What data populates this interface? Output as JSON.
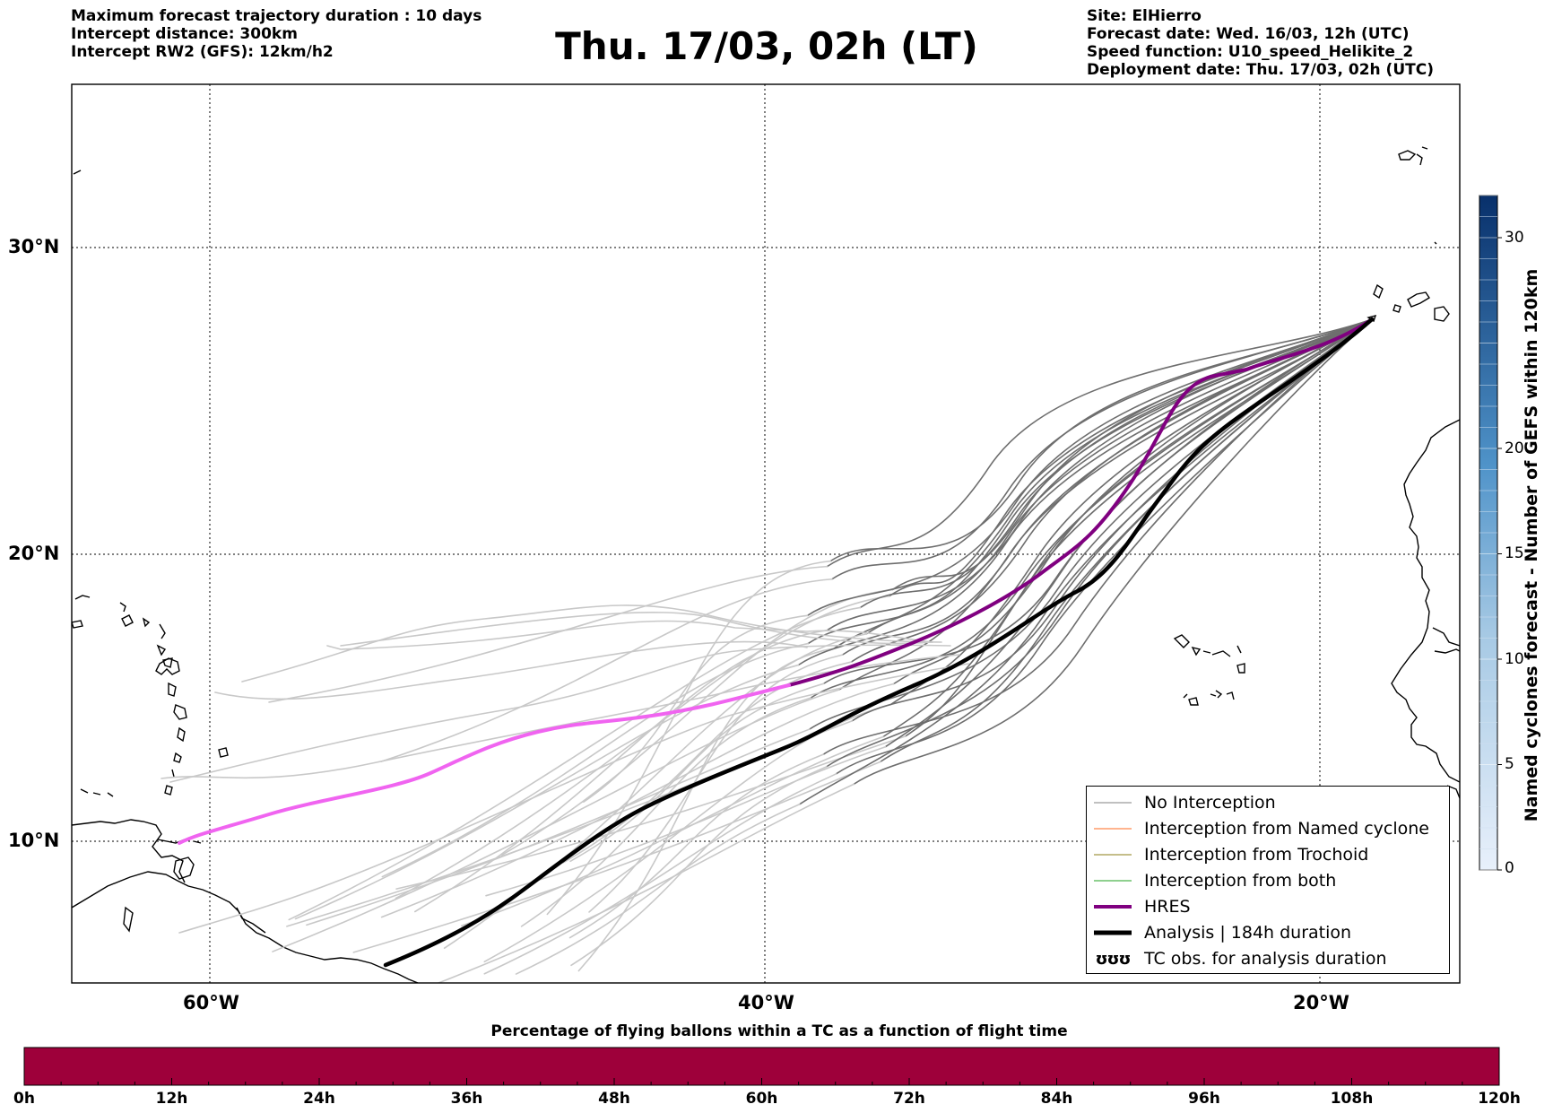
{
  "header_left": {
    "line1": "Maximum forecast trajectory duration : 10 days",
    "line2": "Intercept distance: 300km",
    "line3": "Intercept RW2 (GFS):  12km/h2"
  },
  "title": "Thu. 17/03, 02h (LT)",
  "header_right": {
    "line1": "Site: ElHierro",
    "line2": "Forecast date: Wed. 16/03, 12h (UTC)",
    "line3": "Speed function: U10_speed_Helikite_2",
    "line4": "Deployment date: Thu. 17/03, 02h (UTC)"
  },
  "map": {
    "projection": "mercator",
    "lon_range": [
      -65,
      -15
    ],
    "lat_range": [
      5,
      33
    ],
    "grid": "dotted",
    "lon_labels": [
      "60°W",
      "40°W",
      "20°W"
    ],
    "lat_labels": [
      "30°N",
      "20°N",
      "10°N"
    ],
    "colors": {
      "no_interception": "#808080",
      "named_cyclone": "#ff6a1f",
      "trochoid": "#8b7c14",
      "both": "#1fa01f",
      "hres": "#800080",
      "hres_far": "#f064f0",
      "analysis": "#000000"
    }
  },
  "legend": {
    "items": [
      {
        "label": "No Interception",
        "kind": "gray"
      },
      {
        "label": "Interception from Named cyclone",
        "kind": "orange"
      },
      {
        "label": "Interception from Trochoid",
        "kind": "olive"
      },
      {
        "label": "Interception from both",
        "kind": "green"
      },
      {
        "label": "HRES",
        "kind": "purple"
      },
      {
        "label": "Analysis | 184h duration",
        "kind": "black"
      },
      {
        "label": "TC obs. for analysis duration",
        "kind": "tc"
      }
    ],
    "tc_symbol": "ʊʊʊ"
  },
  "colorbar": {
    "title": "Named cyclones forecast - Number of GEFS within 120km",
    "ticks": [
      "0",
      "5",
      "10",
      "15",
      "20",
      "30"
    ],
    "tick_values": [
      0,
      5,
      10,
      15,
      20,
      30
    ],
    "range": [
      0,
      32
    ]
  },
  "timebar": {
    "title": "Percentage of flying ballons within a TC as a function of flight time",
    "ticks": [
      "0h",
      "12h",
      "24h",
      "36h",
      "48h",
      "60h",
      "72h",
      "84h",
      "96h",
      "108h",
      "120h"
    ],
    "color": "#9e003a"
  }
}
